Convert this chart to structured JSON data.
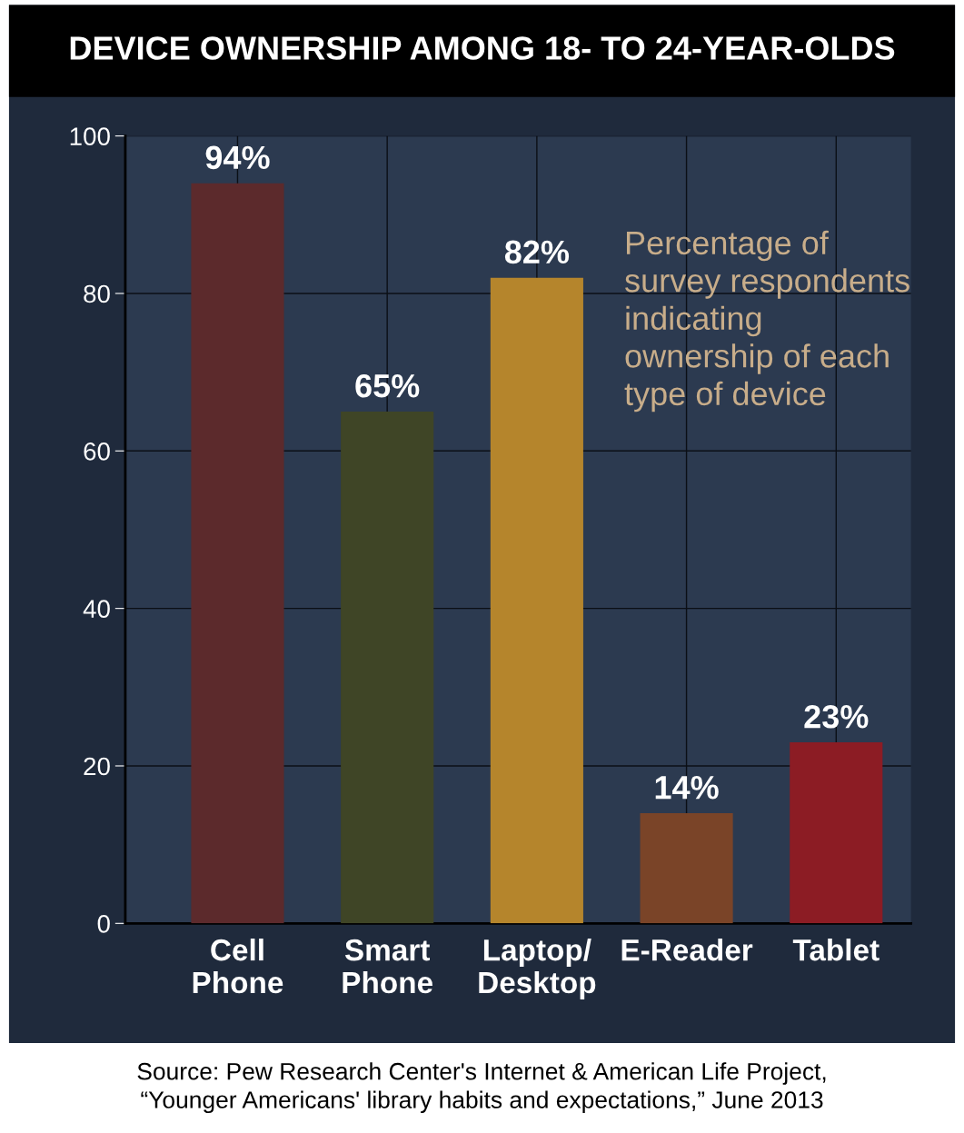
{
  "chart_data": {
    "type": "bar",
    "title": "DEVICE OWNERSHIP AMONG 18- TO 24-YEAR-OLDS",
    "categories": [
      "Cell\nPhone",
      "Smart\nPhone",
      "Laptop/\nDesktop",
      "E-Reader",
      "Tablet"
    ],
    "values": [
      94,
      65,
      82,
      14,
      23
    ],
    "colors": [
      "#5c2a2c",
      "#3f4526",
      "#b5852c",
      "#7a4428",
      "#8c1c24"
    ],
    "value_labels": [
      "94%",
      "65%",
      "82%",
      "14%",
      "23%"
    ],
    "ylim": [
      0,
      100
    ],
    "yticks": [
      0,
      20,
      40,
      60,
      80,
      100
    ],
    "grid": true,
    "annotations": [
      "Percentage of\nsurvey respondents\nindicating\nownership of each\ntype of device",
      "Source: Pew Research Center's Internet & American Life Project,\n“Younger Americans' library habits and expectations,” June 2013"
    ]
  }
}
